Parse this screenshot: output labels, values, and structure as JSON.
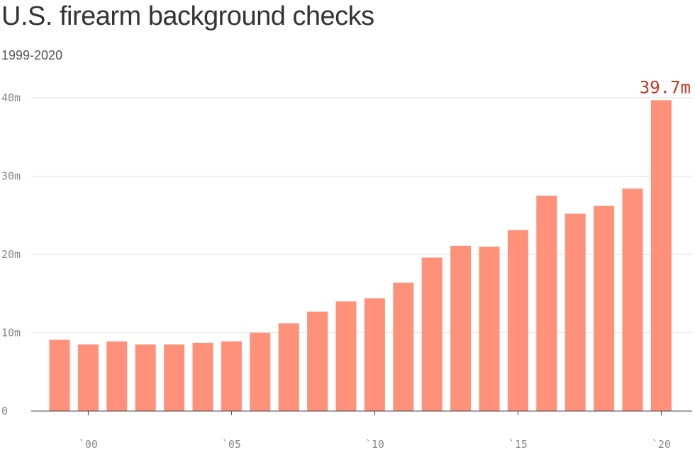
{
  "chart_data": {
    "type": "bar",
    "title": "U.S. firearm background checks",
    "subtitle": "1999-2020",
    "xlabel": "",
    "ylabel": "",
    "categories": [
      "1999",
      "2000",
      "2001",
      "2002",
      "2003",
      "2004",
      "2005",
      "2006",
      "2007",
      "2008",
      "2009",
      "2010",
      "2011",
      "2012",
      "2013",
      "2014",
      "2015",
      "2016",
      "2017",
      "2018",
      "2019",
      "2020"
    ],
    "values": [
      9.1,
      8.5,
      8.9,
      8.5,
      8.5,
      8.7,
      8.9,
      10.0,
      11.2,
      12.7,
      14.0,
      14.4,
      16.4,
      19.6,
      21.1,
      21.0,
      23.1,
      27.5,
      25.2,
      26.2,
      28.4,
      39.7
    ],
    "ylim": [
      0,
      40
    ],
    "y_ticks": [
      {
        "value": 0,
        "label": "0"
      },
      {
        "value": 10,
        "label": "10m"
      },
      {
        "value": 20,
        "label": "20m"
      },
      {
        "value": 30,
        "label": "30m"
      },
      {
        "value": 40,
        "label": "40m"
      }
    ],
    "x_ticks": [
      {
        "year": "2000",
        "label": "`00"
      },
      {
        "year": "2005",
        "label": "`05"
      },
      {
        "year": "2010",
        "label": "`10"
      },
      {
        "year": "2015",
        "label": "`15"
      },
      {
        "year": "2020",
        "label": "`20"
      }
    ],
    "annotation": {
      "category": "2020",
      "text": "39.7m",
      "color": "#c8371f"
    },
    "bar_color": "#ff917a",
    "grid": true,
    "legend": "none"
  }
}
